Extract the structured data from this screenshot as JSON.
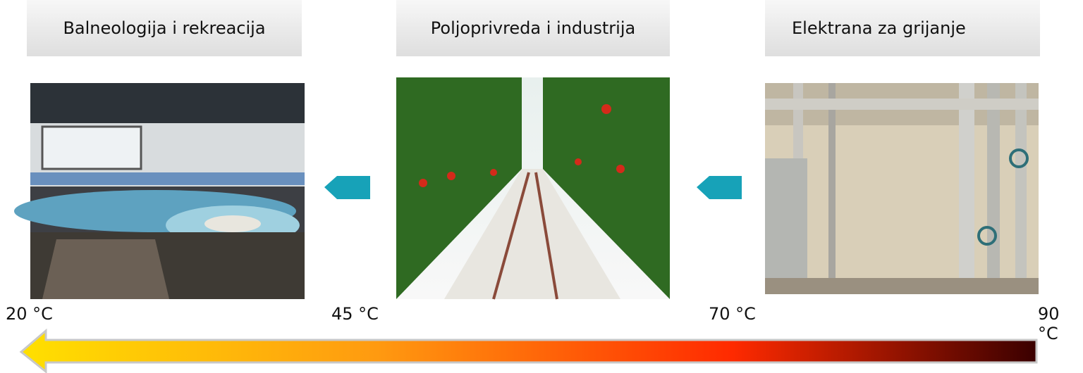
{
  "panels": [
    {
      "title": "Balneologija i rekreacija"
    },
    {
      "title": "Poljoprivreda i industrija"
    },
    {
      "title": "Elektrana za grijanje"
    }
  ],
  "temperatures": [
    "20 °C",
    "45 °C",
    "70 °C",
    "90 °C"
  ]
}
